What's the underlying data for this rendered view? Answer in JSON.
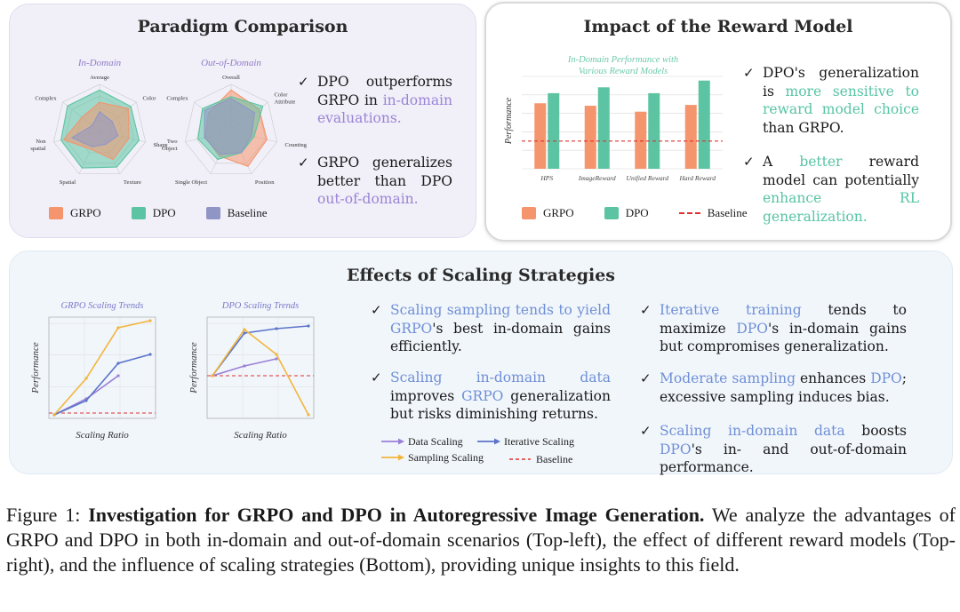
{
  "panels": {
    "paradigm": {
      "title": "Paradigm Comparison",
      "radar_in": {
        "subtitle": "In-Domain",
        "axes": [
          "Average",
          "Color",
          "Shape",
          "Texture",
          "Spatial",
          "Non-spatial",
          "Complex"
        ],
        "series": [
          {
            "name": "DPO",
            "values": [
              0.88,
              0.85,
              0.86,
              0.84,
              0.86,
              0.84,
              0.87
            ]
          },
          {
            "name": "GRPO",
            "values": [
              0.62,
              0.78,
              0.64,
              0.66,
              0.42,
              0.78,
              0.48
            ]
          },
          {
            "name": "Baseline",
            "values": [
              0.42,
              0.34,
              0.4,
              0.3,
              0.36,
              0.6,
              0.2
            ]
          }
        ]
      },
      "radar_out": {
        "subtitle": "Out-of-Domain",
        "axes": [
          "Overall",
          "Color Attribute",
          "Counting",
          "Position",
          "Single Object",
          "Two Object",
          "Complex"
        ],
        "series": [
          {
            "name": "GRPO",
            "values": [
              0.88,
              0.76,
              0.78,
              0.82,
              0.58,
              0.56,
              0.62
            ]
          },
          {
            "name": "DPO",
            "values": [
              0.74,
              0.86,
              0.5,
              0.5,
              0.66,
              0.72,
              0.78
            ]
          },
          {
            "name": "Baseline",
            "values": [
              0.7,
              0.64,
              0.44,
              0.5,
              0.54,
              0.58,
              0.72
            ]
          }
        ]
      },
      "bullets": [
        {
          "pre": "DPO outperforms GRPO in ",
          "hl": "in-domain evaluations.",
          "post": ""
        },
        {
          "pre": "GRPO generalizes better than DPO ",
          "hl": "out-of-domain.",
          "post": ""
        }
      ],
      "legend": [
        "GRPO",
        "DPO",
        "Baseline"
      ]
    },
    "reward": {
      "title": "Impact of the Reward Model",
      "chart_title": "In-Domain Performance with Various Reward Models",
      "ylabel": "Performance",
      "bullets": [
        {
          "a": "DPO's generalization is ",
          "b": "more sensitive to reward model choice",
          "c": " than GRPO."
        },
        {
          "a": "A ",
          "b": "better",
          "c": " reward model can potentially ",
          "d": "enhance RL generalization."
        }
      ],
      "legend": [
        "GRPO",
        "DPO",
        "Baseline"
      ]
    },
    "scaling": {
      "title": "Effects of Scaling Strategies",
      "grpo_chart": {
        "title": "GRPO Scaling Trends",
        "xlabel": "Scaling Ratio",
        "ylabel": "Performance"
      },
      "dpo_chart": {
        "title": "DPO Scaling Trends",
        "xlabel": "Scaling Ratio",
        "ylabel": "Performance"
      },
      "legend": [
        "Data Scaling",
        "Iterative Scaling",
        "Sampling Scaling",
        "Baseline"
      ],
      "col1": [
        {
          "a": "Scaling sampling tends to yield ",
          "b": "GRPO",
          "c": "'s best in-domain gains efficiently."
        },
        {
          "a": "Scaling in-domain data",
          "b": " improves ",
          "c": "GRPO",
          "d": " generalization but risks diminishing returns."
        }
      ],
      "col2": [
        {
          "a": "Iterative training",
          "b": " tends to maximize ",
          "c": "DPO",
          "d": "'s in-domain gains but compromises generalization."
        },
        {
          "a": "Moderate sampling",
          "b": " enhances ",
          "c": "DPO",
          "d": "; excessive sampling induces bias."
        },
        {
          "a": "Scaling in-domain data",
          "b": " boosts ",
          "c": "DPO",
          "d": "'s in- and out-of-domain performance."
        }
      ]
    }
  },
  "caption": {
    "label": "Figure 1: ",
    "bold": "Investigation for GRPO and DPO in Autoregressive Image Generation.",
    "text": " We analyze the advantages of GRPO and DPO in both in-domain and out-of-domain scenarios (Top-left), the effect of different reward models (Top-right), and the influence of scaling strategies (Bottom), providing unique insights to this field."
  },
  "chart_data": [
    {
      "type": "bar",
      "title": "In-Domain Performance with Various Reward Models",
      "ylabel": "Performance",
      "categories": [
        "HPS",
        "ImageReward",
        "Unified Reward",
        "Hard Reward"
      ],
      "series": [
        {
          "name": "GRPO",
          "values": [
            0.78,
            0.75,
            0.68,
            0.76
          ]
        },
        {
          "name": "DPO",
          "values": [
            0.9,
            0.97,
            0.9,
            1.05
          ]
        }
      ],
      "baseline": 0.33,
      "ylim": [
        0,
        1.1
      ]
    },
    {
      "type": "line",
      "title": "GRPO Scaling Trends",
      "xlabel": "Scaling Ratio",
      "ylabel": "Performance",
      "x": [
        0,
        1,
        2,
        3
      ],
      "series": [
        {
          "name": "Data Scaling",
          "values": [
            0,
            0.18,
            0.44,
            null
          ]
        },
        {
          "name": "Iterative Scaling",
          "values": [
            0,
            0.16,
            0.58,
            0.68
          ]
        },
        {
          "name": "Sampling Scaling",
          "values": [
            0,
            0.41,
            0.98,
            1.06
          ]
        }
      ],
      "baseline": 0.02
    },
    {
      "type": "line",
      "title": "DPO Scaling Trends",
      "xlabel": "Scaling Ratio",
      "ylabel": "Performance",
      "x": [
        0,
        1,
        2,
        3
      ],
      "series": [
        {
          "name": "Data Scaling",
          "values": [
            0.44,
            0.55,
            0.63,
            null
          ]
        },
        {
          "name": "Iterative Scaling",
          "values": [
            0.44,
            0.92,
            0.97,
            1.0
          ]
        },
        {
          "name": "Sampling Scaling",
          "values": [
            0.44,
            0.96,
            0.68,
            0.0
          ]
        }
      ],
      "baseline": 0.44
    }
  ],
  "colors": {
    "grpo": "#f4956d",
    "dpo": "#5cc4a2",
    "baseline": "#8f96c6",
    "data": "#9a7fd6",
    "iter": "#5b74c9",
    "sampling": "#f2b53c",
    "red": "#e03030"
  }
}
